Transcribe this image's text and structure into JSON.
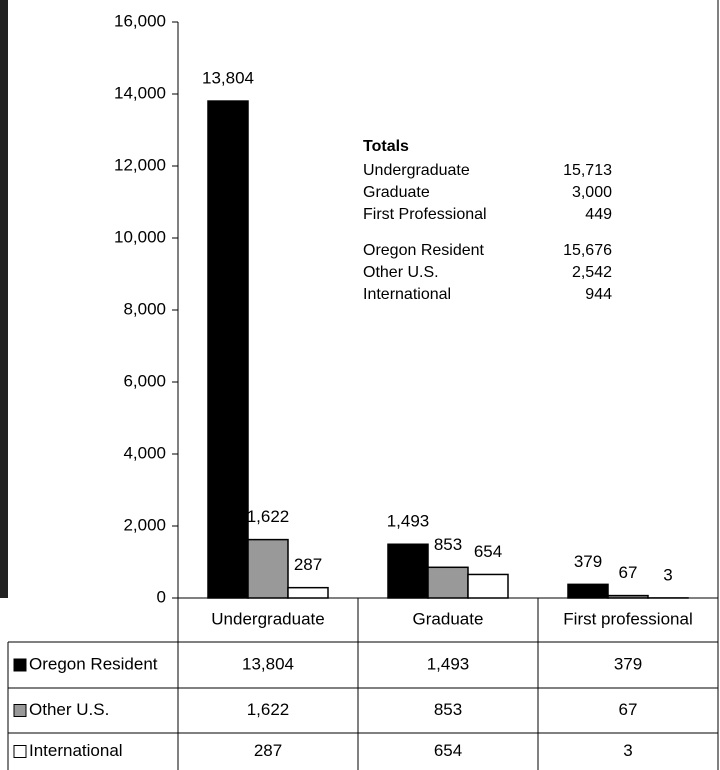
{
  "chart_data": {
    "type": "bar",
    "categories": [
      "Undergraduate",
      "Graduate",
      "First professional"
    ],
    "series": [
      {
        "name": "Oregon Resident",
        "color": "#000000",
        "values": [
          13804,
          1493,
          379
        ],
        "value_labels": [
          "13,804",
          "1,493",
          "379"
        ]
      },
      {
        "name": "Other U.S.",
        "color": "#999999",
        "values": [
          1622,
          853,
          67
        ],
        "value_labels": [
          "1,622",
          "853",
          "67"
        ]
      },
      {
        "name": "International",
        "color": "#ffffff",
        "values": [
          287,
          654,
          3
        ],
        "value_labels": [
          "287",
          "654",
          "3"
        ]
      }
    ],
    "ylim": [
      0,
      16000
    ],
    "yticks": [
      0,
      {
        "value": 2000,
        "label": "2,000"
      },
      {
        "value": 4000,
        "label": "4,000"
      },
      {
        "value": 6000,
        "label": "6,000"
      },
      {
        "value": 8000,
        "label": "8,000"
      },
      {
        "value": 10000,
        "label": "10,000"
      },
      {
        "value": 12000,
        "label": "12,000"
      },
      {
        "value": 14000,
        "label": "14,000"
      },
      {
        "value": 16000,
        "label": "16,000"
      }
    ],
    "annotation": {
      "title": "Totals",
      "groups": [
        [
          {
            "label": "Undergraduate",
            "value": "15,713"
          },
          {
            "label": "Graduate",
            "value": "3,000"
          },
          {
            "label": "First Professional",
            "value": "449"
          }
        ],
        [
          {
            "label": "Oregon Resident",
            "value": "15,676"
          },
          {
            "label": "Other U.S.",
            "value": "2,542"
          },
          {
            "label": "International",
            "value": "944"
          }
        ]
      ]
    }
  }
}
